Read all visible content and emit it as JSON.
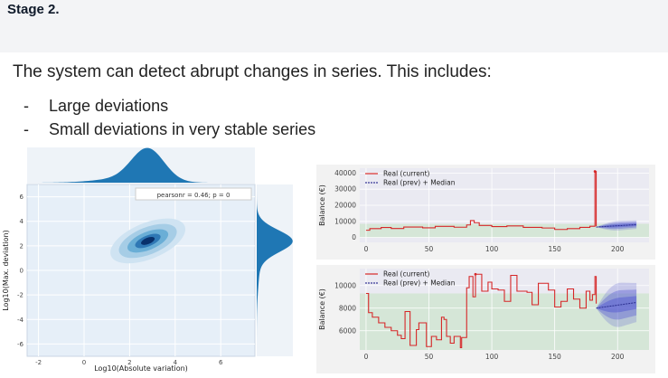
{
  "slide": {
    "stage_label": "Stage 2.",
    "lead_text": "The system can detect abrupt changes in series. This includes:",
    "bullets": [
      "Large deviations",
      "Small deviations in very stable series"
    ],
    "bullet_marker": "-"
  },
  "chart_data": [
    {
      "type": "scatter",
      "subtype": "joint kernel density plot",
      "xlabel": "Log10(Absolute variation)",
      "ylabel": "Log10(Max. deviation)",
      "x_ticks": [
        -2,
        0,
        2,
        4,
        6
      ],
      "y_ticks": [
        -6,
        -4,
        -2,
        0,
        2,
        4,
        6
      ],
      "x_tick_labels": [
        "-2",
        "0",
        "2",
        "4",
        "6"
      ],
      "y_tick_labels": [
        "-6",
        "-4",
        "-2",
        "0",
        "2",
        "4",
        "6"
      ],
      "xlim": [
        -2.5,
        7.5
      ],
      "ylim": [
        -7,
        7
      ],
      "annotation": "pearsonr = 0.46; p = 0",
      "density_center": [
        2.8,
        2.4
      ],
      "marginal_peak_x": 2.8,
      "marginal_peak_y": 2.4,
      "color": "#1f77b4",
      "grid": true
    },
    {
      "type": "line",
      "ylabel": "Balance (€)",
      "x_ticks": [
        0,
        50,
        100,
        150,
        200
      ],
      "x_tick_labels": [
        "0",
        "50",
        "100",
        "150",
        "200"
      ],
      "y_ticks": [
        0,
        10000,
        20000,
        30000,
        40000
      ],
      "y_tick_labels": [
        "0",
        "10000",
        "20000",
        "30000",
        "40000"
      ],
      "xlim": [
        -5,
        225
      ],
      "ylim": [
        -3000,
        43000
      ],
      "grid": true,
      "legend_position": "top-left",
      "series": [
        {
          "name": "Real (current)",
          "color": "#d62728",
          "x": [
            0,
            3,
            3,
            12,
            12,
            20,
            20,
            30,
            30,
            45,
            45,
            55,
            55,
            70,
            70,
            80,
            80,
            83,
            83,
            86,
            86,
            90,
            90,
            100,
            100,
            112,
            112,
            125,
            125,
            140,
            140,
            150,
            150,
            160,
            160,
            170,
            170,
            178,
            178,
            182,
            182,
            183,
            183
          ],
          "y": [
            4500,
            4500,
            5500,
            5500,
            6200,
            6200,
            5600,
            5600,
            6500,
            6500,
            6000,
            6000,
            6900,
            6900,
            6400,
            6400,
            7800,
            7800,
            10500,
            10500,
            9200,
            9200,
            7500,
            7500,
            6800,
            6800,
            7200,
            7200,
            6300,
            6300,
            5900,
            5900,
            5000,
            5000,
            5500,
            5500,
            6300,
            6300,
            7000,
            7000,
            41000,
            41000,
            7000
          ]
        },
        {
          "name": "Real (prev) + Median",
          "color": "#3b3b98"
        }
      ],
      "normal_band": [
        0,
        8500
      ],
      "forecast_x": [
        183,
        215
      ],
      "forecast_center": [
        6500,
        8000
      ],
      "forecast_spread": 3500
    },
    {
      "type": "line",
      "ylabel": "Balance (€)",
      "x_ticks": [
        0,
        50,
        100,
        150,
        200
      ],
      "x_tick_labels": [
        "0",
        "50",
        "100",
        "150",
        "200"
      ],
      "y_ticks": [
        6000,
        8000,
        10000
      ],
      "y_tick_labels": [
        "6000",
        "8000",
        "10000"
      ],
      "xlim": [
        -5,
        225
      ],
      "ylim": [
        4300,
        11500
      ],
      "grid": true,
      "legend_position": "top-left",
      "series": [
        {
          "name": "Real (current)",
          "color": "#d62728",
          "x": [
            0,
            2,
            2,
            5,
            5,
            10,
            10,
            15,
            15,
            20,
            20,
            25,
            25,
            28,
            28,
            31,
            31,
            35,
            35,
            40,
            40,
            42,
            42,
            48,
            48,
            52,
            52,
            56,
            56,
            60,
            60,
            62,
            62,
            64,
            64,
            67,
            67,
            70,
            70,
            75,
            75,
            76,
            76,
            80,
            80,
            82,
            82,
            85,
            85,
            87,
            87,
            92,
            92,
            97,
            97,
            100,
            100,
            105,
            105,
            110,
            110,
            115,
            115,
            120,
            120,
            128,
            128,
            132,
            132,
            137,
            137,
            145,
            145,
            150,
            150,
            155,
            155,
            160,
            160,
            165,
            165,
            170,
            170,
            175,
            175,
            178,
            178,
            180,
            180,
            182,
            182,
            183,
            183
          ],
          "y": [
            9300,
            9300,
            7600,
            7600,
            7200,
            7200,
            6700,
            6700,
            6300,
            6300,
            6000,
            6000,
            5600,
            5600,
            5300,
            5300,
            7700,
            7700,
            4700,
            4700,
            6100,
            6100,
            6700,
            6700,
            4600,
            4600,
            5500,
            5500,
            5200,
            5200,
            7200,
            7200,
            7000,
            7000,
            5500,
            5500,
            4900,
            4900,
            5500,
            5500,
            4500,
            4500,
            5400,
            5400,
            9800,
            9800,
            10800,
            10800,
            9000,
            9000,
            11000,
            11000,
            9500,
            9500,
            10300,
            10300,
            9700,
            9700,
            9600,
            9600,
            8600,
            8600,
            10900,
            10900,
            9500,
            9500,
            9400,
            9400,
            8300,
            8300,
            10200,
            10200,
            9600,
            9600,
            8100,
            8100,
            8600,
            8600,
            9700,
            9700,
            8800,
            8800,
            8000,
            8000,
            9500,
            9500,
            8700,
            8700,
            9200,
            9200,
            10800,
            10800,
            8400
          ]
        },
        {
          "name": "Real (prev) + Median",
          "color": "#3b3b98"
        }
      ],
      "normal_band": [
        4300,
        9300
      ],
      "forecast_x": [
        183,
        215
      ],
      "forecast_center": [
        8000,
        8500
      ],
      "forecast_spread": 2300
    }
  ]
}
